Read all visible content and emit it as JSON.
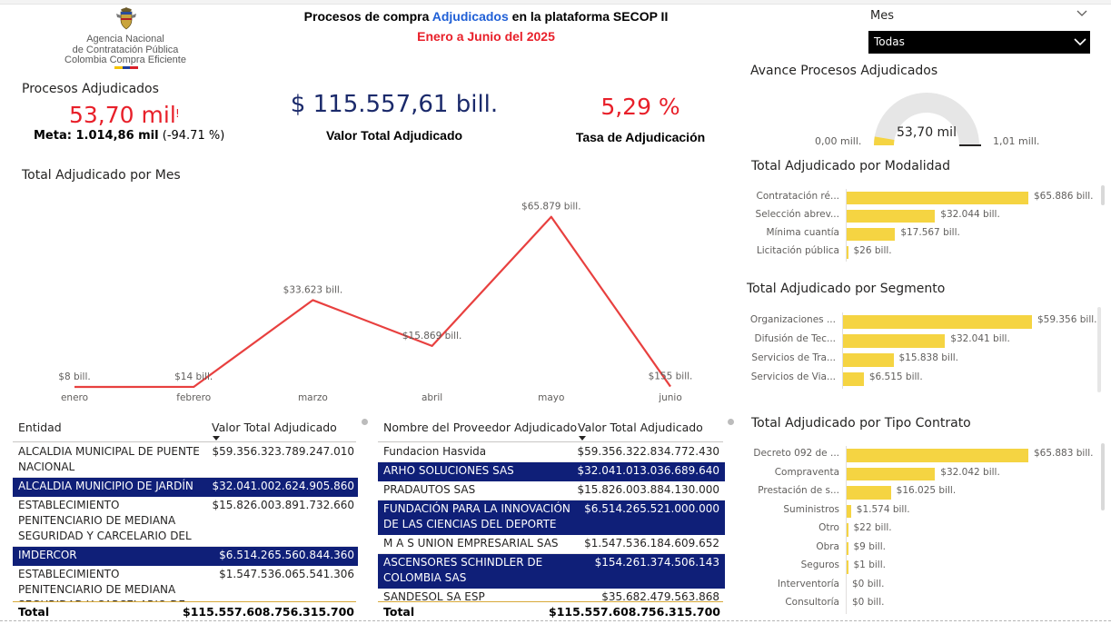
{
  "logo": {
    "line1": "Agencia Nacional",
    "line2": "de Contratación Pública",
    "line3": "Colombia Compra Eficiente",
    "bar_colors": [
      "#f5c400",
      "#1f3f99",
      "#d9202a"
    ]
  },
  "header": {
    "title_before": "Procesos de compra ",
    "title_highlight": "Adjudicados",
    "title_after": " en la plataforma SECOP II",
    "subtitle": "Enero a Junio del 2025"
  },
  "slicer": {
    "label": "Mes",
    "value": "Todas"
  },
  "kpis": {
    "procesos": {
      "label": "Procesos Adjudicados",
      "value": "53,70 mil",
      "alert": "!",
      "meta_label": "Meta: 1.014,86 mil",
      "meta_delta": "(-94.71 %)"
    },
    "valor_total": {
      "value": "$ 115.557,61 bill.",
      "label": "Valor Total Adjudicado"
    },
    "tasa": {
      "value": "5,29 %",
      "label": "Tasa de Adjudicación"
    }
  },
  "gauge": {
    "title": "Avance Procesos Adjudicados",
    "value_label": "53,70 mil",
    "min_label": "0,00 mill.",
    "max_label": "1,01 mill.",
    "fraction": 0.053,
    "fill_color": "#f5d442",
    "track_color": "#e6e6e6"
  },
  "chart_data": [
    {
      "type": "line",
      "title": "Total Adjudicado por Mes",
      "categories": [
        "enero",
        "febrero",
        "marzo",
        "abril",
        "mayo",
        "junio"
      ],
      "values": [
        8,
        14,
        33623,
        15869,
        65879,
        155
      ],
      "data_labels": [
        "$8 bill.",
        "$14 bill.",
        "$33.623 bill.",
        "$15.869 bill.",
        "$65.879 bill.",
        "$155 bill."
      ],
      "color": "#e8403f",
      "ylim": [
        0,
        70000
      ]
    },
    {
      "type": "bar",
      "orientation": "horizontal",
      "title": "Total Adjudicado por Modalidad",
      "categories": [
        "Contratación ré...",
        "Selección abrev...",
        "Mínima cuantía",
        "Licitación pública"
      ],
      "values": [
        65886,
        32044,
        17567,
        26
      ],
      "data_labels": [
        "$65.886 bill.",
        "$32.044 bill.",
        "$17.567 bill.",
        "$26 bill."
      ],
      "color": "#f5d442"
    },
    {
      "type": "bar",
      "orientation": "horizontal",
      "title": "Total Adjudicado por Segmento",
      "categories": [
        "Organizaciones ...",
        "Difusión de Tec...",
        "Servicios de Tra...",
        "Servicios de Via..."
      ],
      "values": [
        59356,
        32041,
        15838,
        6515
      ],
      "data_labels": [
        "$59.356 bill.",
        "$32.041 bill.",
        "$15.838 bill.",
        "$6.515 bill."
      ],
      "color": "#f5d442"
    },
    {
      "type": "bar",
      "orientation": "horizontal",
      "title": "Total Adjudicado por Tipo Contrato",
      "categories": [
        "Decreto 092 de ...",
        "Compraventa",
        "Prestación de s...",
        "Suministros",
        "Otro",
        "Obra",
        "Seguros",
        "Interventoría",
        "Consultoría"
      ],
      "values": [
        65883,
        32042,
        16025,
        1574,
        22,
        9,
        1,
        0,
        0
      ],
      "data_labels": [
        "$65.883 bill.",
        "$32.042 bill.",
        "$16.025 bill.",
        "$1.574 bill.",
        "$22 bill.",
        "$9 bill.",
        "$1 bill.",
        "$0 bill.",
        "$0 bill."
      ],
      "color": "#f5d442"
    }
  ],
  "table_entidad": {
    "headers": [
      "Entidad",
      "Valor Total Adjudicado"
    ],
    "rows": [
      {
        "name": "ALCALDIA MUNICIPAL DE PUENTE NACIONAL",
        "value": "$59.356.323.789.247.010",
        "selected": false
      },
      {
        "name": "ALCALDIA MUNICIPIO DE JARDÍN",
        "value": "$32.041.002.624.905.860",
        "selected": true
      },
      {
        "name": "ESTABLECIMIENTO PENITENCIARIO DE MEDIANA SEGURIDAD Y CARCELARIO DEL GUAMO",
        "value": "$15.826.003.891.732.660",
        "selected": false
      },
      {
        "name": "IMDERCOR",
        "value": "$6.514.265.560.844.360",
        "selected": true
      },
      {
        "name": "ESTABLECIMIENTO PENITENCIARIO DE MEDIANA SEGURIDAD Y CARCELARIO DE ISTMINA",
        "value": "$1.547.536.065.541.306",
        "selected": false
      }
    ],
    "total_label": "Total",
    "total_value": "$115.557.608.756.315.700"
  },
  "table_proveedor": {
    "headers": [
      "Nombre del Proveedor Adjudicado",
      "Valor Total Adjudicado"
    ],
    "rows": [
      {
        "name": "Fundacion Hasvida",
        "value": "$59.356.322.834.772.430",
        "selected": false
      },
      {
        "name": "ARHO SOLUCIONES SAS",
        "value": "$32.041.013.036.689.640",
        "selected": true
      },
      {
        "name": "PRADAUTOS SAS",
        "value": "$15.826.003.884.130.000",
        "selected": false
      },
      {
        "name": "FUNDACIÓN PARA LA INNOVACIÓN DE LAS CIENCIAS DEL DEPORTE",
        "value": "$6.514.265.521.000.000",
        "selected": true
      },
      {
        "name": "M A S UNION EMPRESARIAL SAS",
        "value": "$1.547.536.184.609.652",
        "selected": false
      },
      {
        "name": "ASCENSORES SCHINDLER DE COLOMBIA SAS",
        "value": "$154.261.374.506.143",
        "selected": true
      },
      {
        "name": "SANDESOL SA ESP",
        "value": "$35.682.479.563.868",
        "selected": false
      }
    ],
    "total_label": "Total",
    "total_value": "$115.557.608.756.315.700"
  }
}
